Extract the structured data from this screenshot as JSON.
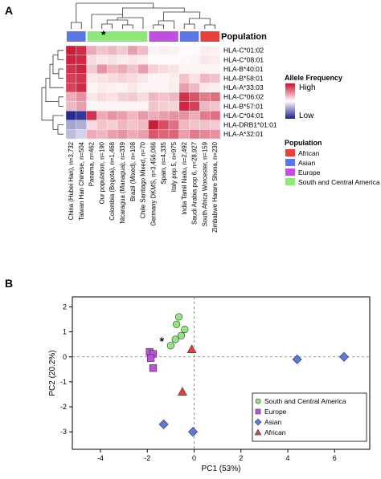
{
  "panels": {
    "a": "A",
    "b": "B"
  },
  "heatmap": {
    "population_header": "Population",
    "star_mark": "*",
    "rows": [
      "HLA-C*01:02",
      "HLA-C*08:01",
      "HLA-B*40:01",
      "HLA-B*58:01",
      "HLA-A*33:03",
      "HLA-C*06:02",
      "HLA-B*57:01",
      "HLA-C*04:01",
      "HLA-DRB1*01:01",
      "HLA-A*32:01"
    ],
    "columns": [
      {
        "label": "China (Hubei Han), n=3,732",
        "group": "Asian"
      },
      {
        "label": "Taiwan Han Chinese, n=504",
        "group": "Asian"
      },
      {
        "label": "Panama, n=462",
        "group": "South and Central America"
      },
      {
        "label": "Our population, n=190",
        "group": "South and Central America"
      },
      {
        "label": "Colombia (Bogota), n=1,468",
        "group": "South and Central America"
      },
      {
        "label": "Nicaragua (Managua), n=339",
        "group": "South and Central America"
      },
      {
        "label": "Brazil (Mixed), n=108",
        "group": "South and Central America"
      },
      {
        "label": "Chile Santiago Mixed, n=70",
        "group": "South and Central America"
      },
      {
        "label": "Germany DKMS, n=3,456,066",
        "group": "Europe"
      },
      {
        "label": "Spain, n=4,335",
        "group": "Europe"
      },
      {
        "label": "Italy pop 5, n=975",
        "group": "Europe"
      },
      {
        "label": "India Tamil Nadu, n=2,492",
        "group": "Asian"
      },
      {
        "label": "Saudi Arabia pop 6, n=28,927",
        "group": "Asian"
      },
      {
        "label": "South Africa Worcester, n=159",
        "group": "African"
      },
      {
        "label": "Zimbabwe Harare Shona, n=230",
        "group": "African"
      }
    ],
    "values": [
      [
        0.95,
        0.88,
        0.35,
        0.25,
        0.3,
        0.22,
        0.4,
        0.28,
        0.05,
        0.08,
        0.06,
        0.02,
        0.02,
        0.08,
        0.05
      ],
      [
        0.92,
        0.9,
        0.15,
        0.1,
        0.12,
        0.08,
        0.1,
        0.08,
        0.02,
        0.02,
        0.02,
        0.03,
        0.05,
        0.1,
        0.08
      ],
      [
        0.85,
        0.92,
        0.22,
        0.45,
        0.3,
        0.35,
        0.25,
        0.4,
        0.2,
        0.15,
        0.12,
        0.05,
        0.05,
        0.05,
        0.05
      ],
      [
        0.8,
        0.85,
        0.1,
        0.12,
        0.15,
        0.18,
        0.15,
        0.1,
        0.05,
        0.05,
        0.08,
        0.25,
        0.12,
        0.3,
        0.25
      ],
      [
        0.78,
        0.88,
        0.05,
        0.08,
        0.06,
        0.05,
        0.1,
        0.05,
        0.05,
        0.05,
        0.08,
        0.4,
        0.3,
        0.1,
        0.08
      ],
      [
        0.35,
        0.45,
        0.1,
        0.15,
        0.12,
        0.2,
        0.22,
        0.15,
        0.3,
        0.25,
        0.3,
        0.85,
        0.72,
        0.55,
        0.6
      ],
      [
        0.3,
        0.4,
        0.05,
        0.05,
        0.05,
        0.05,
        0.05,
        0.05,
        0.25,
        0.2,
        0.18,
        0.9,
        0.8,
        0.3,
        0.25
      ],
      [
        -0.95,
        -0.9,
        0.85,
        0.35,
        0.45,
        0.4,
        0.3,
        0.42,
        0.35,
        0.4,
        0.45,
        0.45,
        0.35,
        0.55,
        0.6
      ],
      [
        -0.4,
        -0.35,
        0.15,
        0.25,
        0.2,
        0.3,
        0.25,
        0.28,
        0.95,
        0.75,
        0.6,
        0.3,
        0.25,
        0.25,
        0.22
      ],
      [
        -0.3,
        -0.2,
        0.35,
        0.3,
        0.4,
        0.45,
        0.35,
        0.4,
        0.7,
        0.65,
        0.65,
        0.4,
        0.55,
        0.5,
        0.45
      ]
    ],
    "legend": {
      "title": "Allele Frequency",
      "high_label": "High",
      "low_label": "Low",
      "colors": {
        "high": "#c8102e",
        "mid": "#ffffff",
        "low": "#1e1e8c"
      }
    },
    "population_legend": {
      "title": "Population",
      "items": [
        {
          "label": "African",
          "color": "#e8403a"
        },
        {
          "label": "Asian",
          "color": "#5b78e6"
        },
        {
          "label": "Europe",
          "color": "#c04fe0"
        },
        {
          "label": "South and Central America",
          "color": "#8ee87a"
        }
      ]
    }
  },
  "chart_data": {
    "type": "scatter",
    "xlabel": "PC1 (53%)",
    "ylabel": "PC2 (20.2%)",
    "xlim": [
      -5.2,
      7.5
    ],
    "ylim": [
      -3.7,
      2.4
    ],
    "xticks": [
      -4,
      -2,
      0,
      2,
      4,
      6
    ],
    "yticks": [
      -3,
      -2,
      -1,
      0,
      1,
      2
    ],
    "reference_lines": {
      "x": 0,
      "y": 0
    },
    "annotation": "*",
    "legend_position": "bottom-right",
    "series": [
      {
        "name": "South and Central America",
        "color": "#8ee87a",
        "marker": "circle",
        "points": [
          [
            -0.65,
            1.6
          ],
          [
            -0.75,
            1.3
          ],
          [
            -0.4,
            1.1
          ],
          [
            -0.55,
            0.85
          ],
          [
            -0.8,
            0.7
          ],
          [
            -1.0,
            0.45
          ]
        ]
      },
      {
        "name": "Europe",
        "color": "#c04fe0",
        "marker": "square",
        "points": [
          [
            -1.9,
            0.2
          ],
          [
            -1.75,
            0.12
          ],
          [
            -1.85,
            -0.05
          ],
          [
            -1.75,
            -0.45
          ]
        ]
      },
      {
        "name": "Asian",
        "color": "#5b78e6",
        "marker": "diamond",
        "points": [
          [
            -1.3,
            -2.7
          ],
          [
            -0.05,
            -3.0
          ],
          [
            4.4,
            -0.1
          ],
          [
            6.4,
            0.0
          ]
        ]
      },
      {
        "name": "African",
        "color": "#e8403a",
        "marker": "triangle",
        "points": [
          [
            -0.1,
            0.3
          ],
          [
            -0.5,
            -1.4
          ]
        ]
      }
    ]
  }
}
